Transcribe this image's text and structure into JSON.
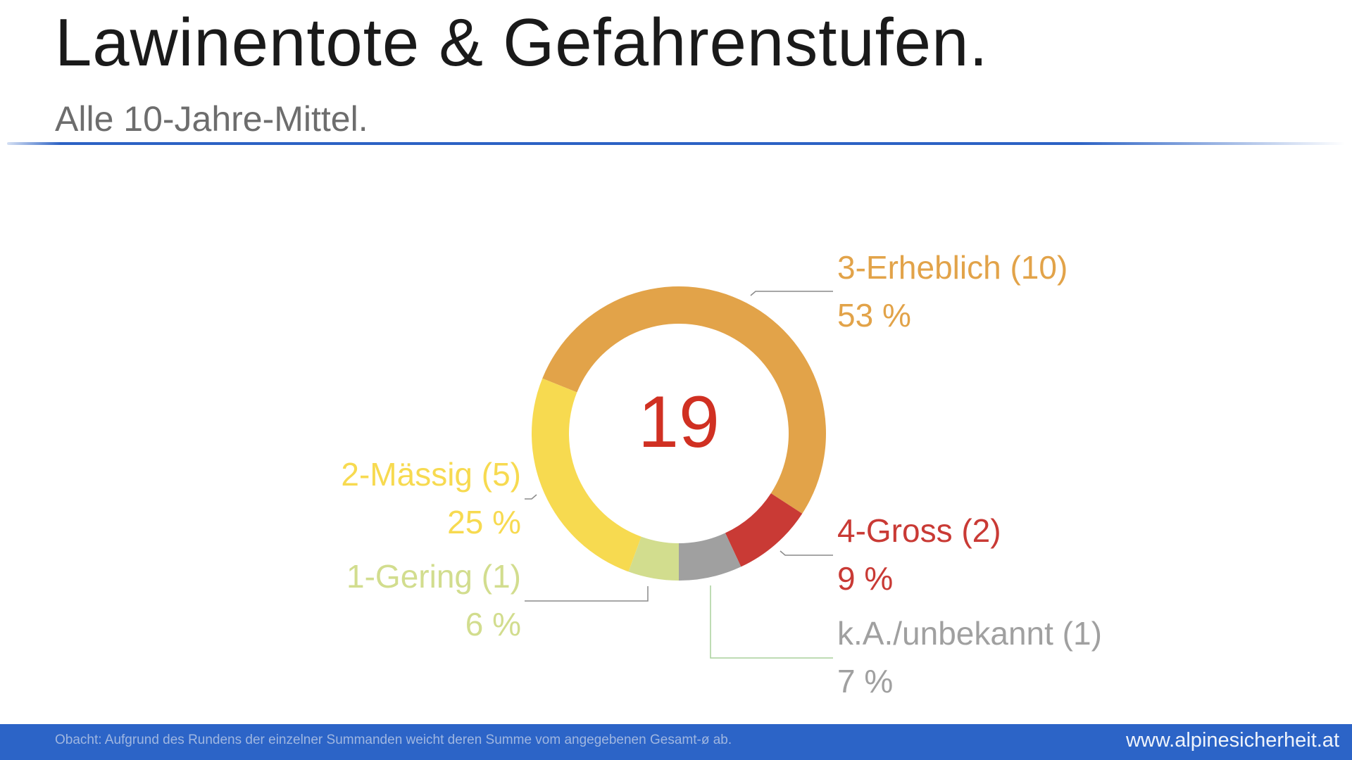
{
  "header": {
    "title": "Lawinentote & Gefahrenstufen.",
    "subtitle": "Alle 10-Jahre-Mittel."
  },
  "footer": {
    "note": "Obacht: Aufgrund des Rundens der einzelner Summanden weicht deren Summe vom angegebenen Gesamt-ø ab.",
    "url": "www.alpinesicherheit.at",
    "background": "#2c64c7"
  },
  "chart_data": {
    "type": "pie",
    "variant": "donut",
    "title": "Lawinentote & Gefahrenstufen.",
    "subtitle": "Alle 10-Jahre-Mittel.",
    "center_label": "19",
    "total": 19,
    "categories": [
      "3-Erheblich",
      "4-Gross",
      "k.A./unbekannt",
      "1-Gering",
      "2-Mässig"
    ],
    "values": [
      10,
      2,
      1,
      1,
      5
    ],
    "percentages": [
      53,
      9,
      7,
      6,
      25
    ],
    "colors": [
      "#e2a349",
      "#c93a35",
      "#a0a0a0",
      "#d2dd8e",
      "#f7da50"
    ],
    "start_angle_deg": 292,
    "direction": "clockwise",
    "slices": [
      {
        "name": "3-Erheblich",
        "count": 10,
        "label": "3-Erheblich (10)",
        "pct_label": "53 %",
        "color": "#e2a349",
        "start": 292,
        "end": 483
      },
      {
        "name": "4-Gross",
        "count": 2,
        "label": "4-Gross (2)",
        "pct_label": "9 %",
        "color": "#c93a35",
        "start": 123,
        "end": 155
      },
      {
        "name": "k.A./unbekannt",
        "count": 1,
        "label": "k.A./unbekannt (1)",
        "pct_label": "7 %",
        "color": "#a0a0a0",
        "start": 155,
        "end": 180
      },
      {
        "name": "1-Gering",
        "count": 1,
        "label": "1-Gering (1)",
        "pct_label": "6 %",
        "color": "#d2dd8e",
        "start": 180,
        "end": 200
      },
      {
        "name": "2-Mässig",
        "count": 5,
        "label": "2-Mässig (5)",
        "pct_label": "25 %",
        "color": "#f7da50",
        "start": 200,
        "end": 292
      }
    ],
    "legend": "data labels with leader lines"
  }
}
